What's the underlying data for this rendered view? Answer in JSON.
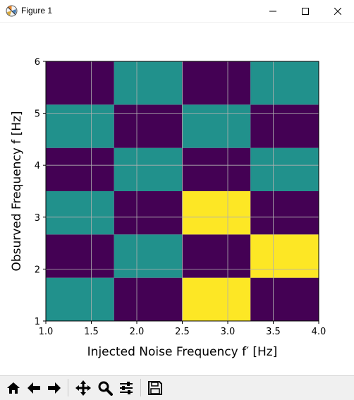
{
  "window": {
    "title": "Figure 1",
    "icons": {
      "app": "matplotlib-icon",
      "minimize": "minimize-icon",
      "maximize": "maximize-icon",
      "close": "close-icon"
    }
  },
  "toolbar": {
    "buttons": [
      "home-icon",
      "back-arrow-icon",
      "forward-arrow-icon",
      "pan-icon",
      "zoom-icon",
      "configure-subplots-icon",
      "save-icon"
    ]
  },
  "chart_data": {
    "type": "heatmap",
    "title": "",
    "xlabel": "Injected Noise Frequency f′ [Hz]",
    "ylabel": "Obsurved Frequency f [Hz]",
    "xlim": [
      1.0,
      4.0
    ],
    "ylim": [
      1,
      6
    ],
    "grid": true,
    "xticks": [
      "1.0",
      "1.5",
      "2.0",
      "2.5",
      "3.0",
      "3.5",
      "4.0"
    ],
    "yticks": [
      "1",
      "2",
      "3",
      "4",
      "5",
      "6"
    ],
    "x_edges": [
      1.0,
      1.75,
      2.5,
      3.25,
      4.0
    ],
    "y_edges": [
      1.0,
      1.8333,
      2.6667,
      3.5,
      4.3333,
      5.1667,
      6.0
    ],
    "colormap": {
      "0": "#440154",
      "1": "#21918c",
      "2": "#fde725"
    },
    "cells": [
      [
        1,
        0,
        2,
        0
      ],
      [
        0,
        1,
        0,
        2
      ],
      [
        1,
        0,
        2,
        0
      ],
      [
        0,
        1,
        0,
        1
      ],
      [
        1,
        0,
        1,
        0
      ],
      [
        0,
        1,
        0,
        1
      ]
    ]
  }
}
